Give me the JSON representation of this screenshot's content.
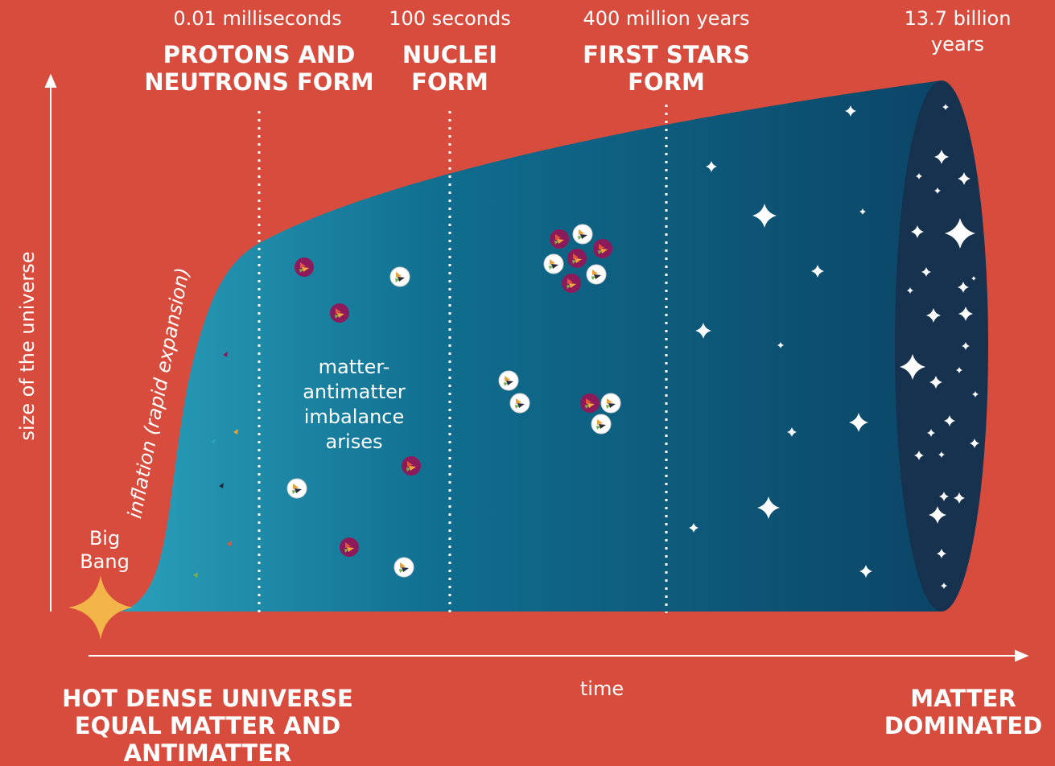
{
  "axes": {
    "y_label": "size of the universe",
    "x_label": "time"
  },
  "big_bang": [
    "Big",
    "Bang"
  ],
  "inflation": "inflation (rapid expansion)",
  "imbalance": [
    "matter-",
    "antimatter",
    "imbalance",
    "arises"
  ],
  "milestones": [
    {
      "time": [
        "0.01 milliseconds"
      ],
      "label": [
        "PROTONS AND",
        "NEUTRONS FORM"
      ]
    },
    {
      "time": [
        "100 seconds"
      ],
      "label": [
        "NUCLEI",
        "FORM"
      ]
    },
    {
      "time": [
        "400 million years"
      ],
      "label": [
        "FIRST STARS",
        "FORM"
      ]
    },
    {
      "time": [
        "13.7 billion",
        "years"
      ],
      "label": []
    }
  ],
  "start_state": [
    "HOT DENSE UNIVERSE",
    "EQUAL MATTER AND",
    "ANTIMATTER"
  ],
  "end_state": [
    "MATTER",
    "DOMINATED"
  ]
}
